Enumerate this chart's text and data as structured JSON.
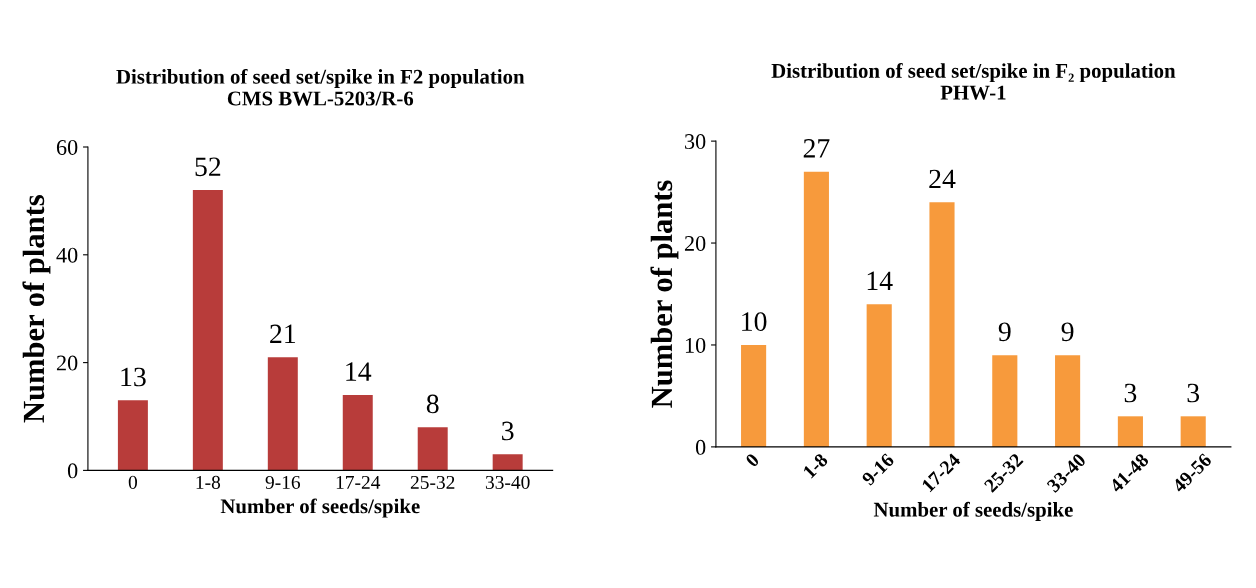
{
  "chart_data": [
    {
      "type": "bar",
      "title": "Distribution of seed set/spike in F2 population",
      "subtitle": "CMS BWL-5203/R-6",
      "xlabel": "Number of seeds/spike",
      "ylabel": "Number of plants",
      "categories": [
        "0",
        "1-8",
        "9-16",
        "17-24",
        "25-32",
        "33-40"
      ],
      "values": [
        13,
        52,
        21,
        14,
        8,
        3
      ],
      "color": "#b83c3a",
      "ylim": [
        0,
        60
      ],
      "yticks": [
        0,
        20,
        40,
        60
      ],
      "data_labels": true,
      "grid": false
    },
    {
      "type": "bar",
      "title": "Distribution of seed set/spike in F₂ population",
      "subtitle": "PHW-1",
      "xlabel": "Number of seeds/spike",
      "ylabel": "Number of plants",
      "categories": [
        "0",
        "1-8",
        "9-16",
        "17-24",
        "25-32",
        "33-40",
        "41-48",
        "49-56"
      ],
      "values": [
        10,
        27,
        14,
        24,
        9,
        9,
        3,
        3
      ],
      "color": "#f79a3c",
      "ylim": [
        0,
        30
      ],
      "yticks": [
        0,
        10,
        20,
        30
      ],
      "data_labels": true,
      "grid": false
    }
  ]
}
